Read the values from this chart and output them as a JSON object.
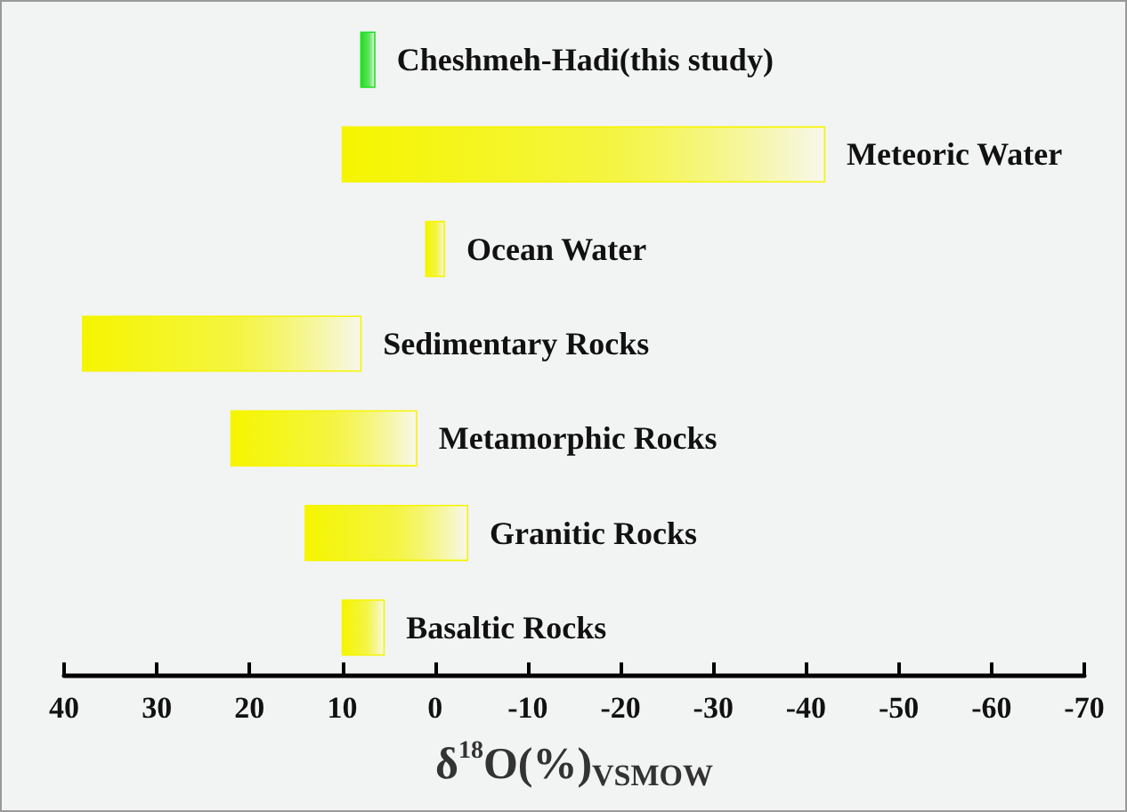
{
  "chart_data": {
    "type": "bar",
    "orientation": "horizontal",
    "categories": [
      "Cheshmeh-Hadi(this study)",
      "Meteoric Water",
      "Ocean Water",
      "Sedimentary Rocks",
      "Metamorphic Rocks",
      "Granitic Rocks",
      "Basaltic Rocks"
    ],
    "base": [
      6.5,
      -42,
      -1,
      8,
      2,
      -3.5,
      5.5
    ],
    "values": [
      1.5,
      52,
      2,
      30,
      20,
      17.5,
      4.5
    ],
    "colors": [
      "#22dd22",
      "#f5f500",
      "#f5f500",
      "#f5f500",
      "#f5f500",
      "#f5f500",
      "#f5f500"
    ],
    "xlim": [
      40,
      -70
    ],
    "xticks": [
      40,
      30,
      20,
      10,
      0,
      -10,
      -20,
      -30,
      -40,
      -50,
      -60,
      -70
    ],
    "xlabel": "δ$^{18}$O(%)$_{VSMOW}$",
    "tick_labels": "x",
    "grid": false
  }
}
